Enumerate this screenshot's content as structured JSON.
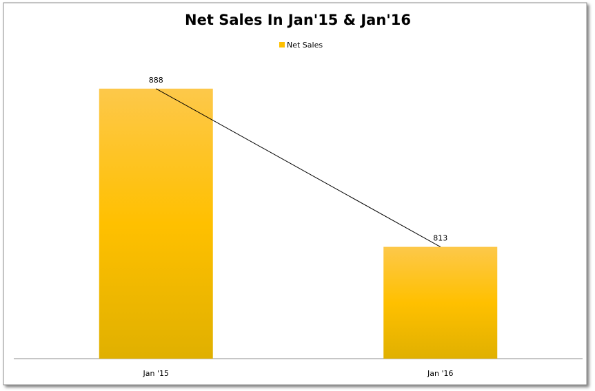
{
  "chart_data": {
    "type": "bar",
    "title": "Net Sales In Jan'15 & Jan'16",
    "categories": [
      "Jan '15",
      "Jan '16"
    ],
    "series": [
      {
        "name": "Net Sales",
        "color": "#ffc000",
        "values": [
          888,
          813
        ]
      }
    ],
    "ylim": [
      760,
      900
    ],
    "connector_line": true,
    "legend": "top",
    "data_labels": true
  }
}
